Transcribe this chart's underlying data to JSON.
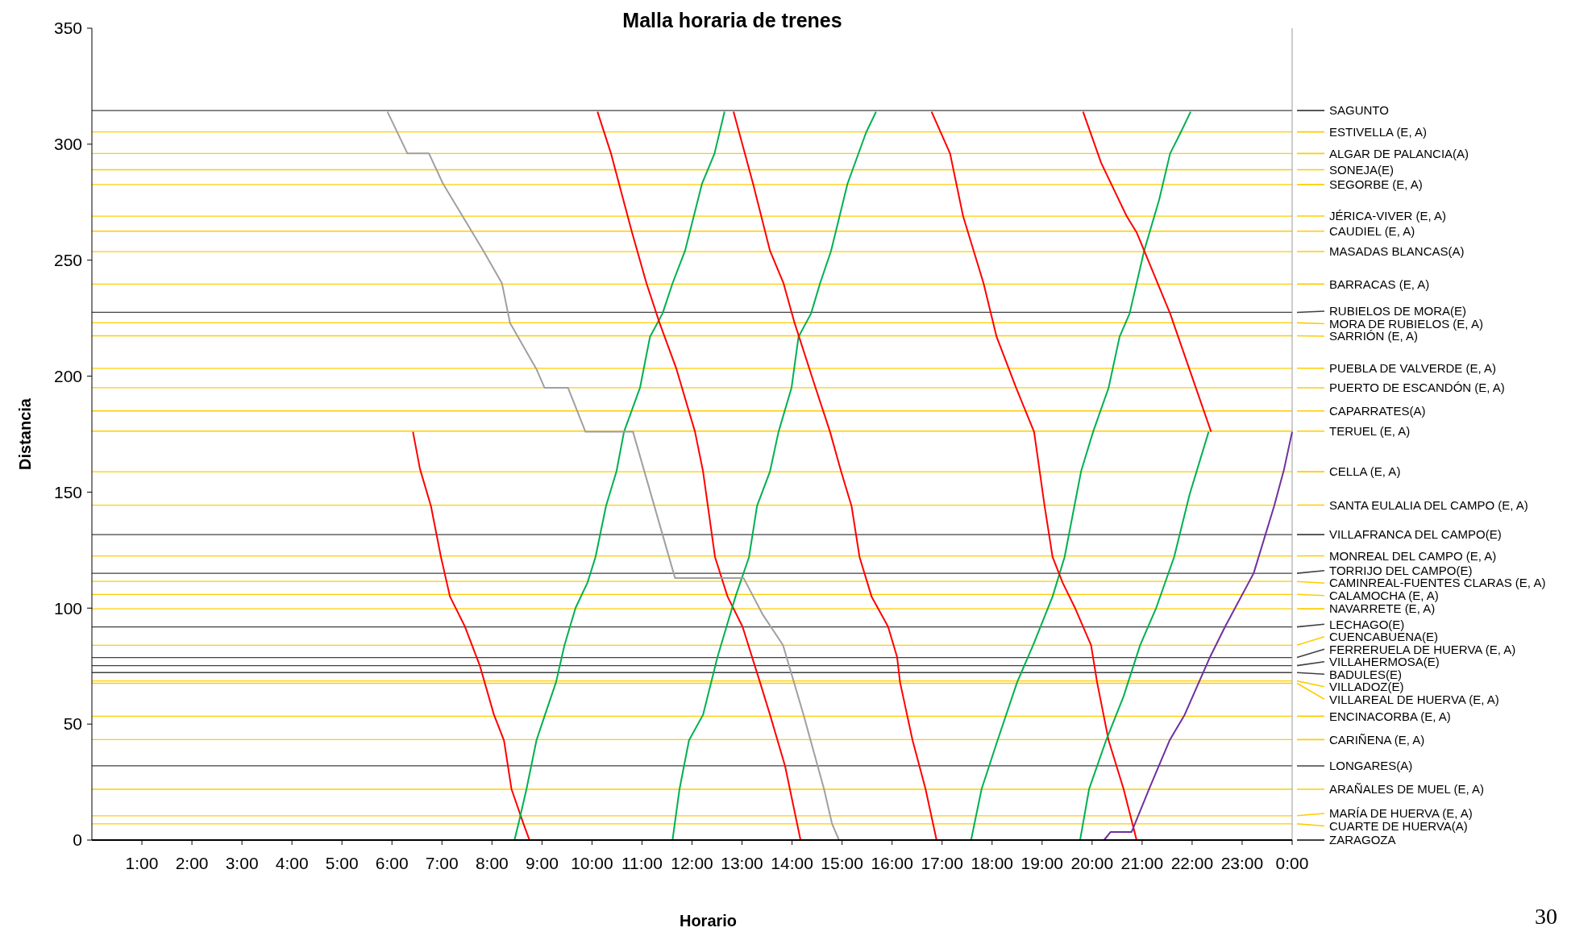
{
  "chart_data": {
    "type": "line",
    "title": "Malla horaria de trenes",
    "xlabel": "Horario",
    "ylabel": "Distancia",
    "annotations": [
      "30"
    ],
    "xlim": [
      0,
      24
    ],
    "xticks": [
      {
        "value": 1,
        "label": "1:00"
      },
      {
        "value": 2,
        "label": "2:00"
      },
      {
        "value": 3,
        "label": "3:00"
      },
      {
        "value": 4,
        "label": "4:00"
      },
      {
        "value": 5,
        "label": "5:00"
      },
      {
        "value": 6,
        "label": "6:00"
      },
      {
        "value": 7,
        "label": "7:00"
      },
      {
        "value": 8,
        "label": "8:00"
      },
      {
        "value": 9,
        "label": "9:00"
      },
      {
        "value": 10,
        "label": "10:00"
      },
      {
        "value": 11,
        "label": "11:00"
      },
      {
        "value": 12,
        "label": "12:00"
      },
      {
        "value": 13,
        "label": "13:00"
      },
      {
        "value": 14,
        "label": "14:00"
      },
      {
        "value": 15,
        "label": "15:00"
      },
      {
        "value": 16,
        "label": "16:00"
      },
      {
        "value": 17,
        "label": "17:00"
      },
      {
        "value": 18,
        "label": "18:00"
      },
      {
        "value": 19,
        "label": "19:00"
      },
      {
        "value": 20,
        "label": "20:00"
      },
      {
        "value": 21,
        "label": "21:00"
      },
      {
        "value": 22,
        "label": "22:00"
      },
      {
        "value": 23,
        "label": "23:00"
      },
      {
        "value": 24,
        "label": "0:00"
      }
    ],
    "ylim": [
      0,
      350
    ],
    "yticks": [
      0,
      50,
      100,
      150,
      200,
      250,
      300,
      350
    ],
    "marker": "none",
    "line_style": "solid",
    "series": [
      {
        "color": "#ff0000",
        "x": [
          6.42,
          6.56,
          6.78,
          6.98,
          7.16,
          7.46,
          7.76,
          8.04,
          8.24,
          8.39,
          8.63,
          8.75
        ],
        "values": [
          176,
          160,
          144,
          122,
          105,
          92,
          75,
          54,
          43,
          22,
          7,
          0
        ]
      },
      {
        "color": "#00b050",
        "x": [
          8.45,
          8.53,
          8.69,
          8.89,
          9.06,
          9.28,
          9.45,
          9.67,
          9.91,
          10.07,
          10.28,
          10.49,
          10.64,
          10.96,
          11.16,
          11.41,
          11.61,
          11.86,
          12.2,
          12.45,
          12.65
        ],
        "values": [
          0,
          7,
          22,
          43,
          54,
          68,
          84,
          100,
          111,
          122,
          144,
          159,
          176,
          195,
          217,
          227,
          240,
          254,
          283,
          296,
          314
        ]
      },
      {
        "color": "#ff0000",
        "x": [
          10.11,
          10.38,
          10.54,
          10.8,
          11.09,
          11.35,
          11.69,
          12.06,
          12.22,
          12.46,
          12.71,
          13.01,
          13.36,
          13.56,
          13.86,
          14.17
        ],
        "values": [
          314,
          296,
          283,
          262,
          240,
          223,
          203,
          176,
          159,
          122,
          105,
          92,
          68,
          54,
          32,
          0
        ]
      },
      {
        "color": "#00b050",
        "x": [
          11.61,
          11.75,
          11.94,
          12.22,
          12.51,
          12.69,
          12.87,
          13.14,
          13.3,
          13.56,
          13.73,
          13.99,
          14.13,
          14.38,
          14.56,
          14.78,
          15.11,
          15.48,
          15.68
        ],
        "values": [
          0,
          22,
          43,
          54,
          79,
          92,
          105,
          122,
          144,
          159,
          176,
          195,
          217,
          227,
          240,
          254,
          283,
          305,
          314
        ]
      },
      {
        "color": "#ff0000",
        "x": [
          12.83,
          13.22,
          13.56,
          13.83,
          14.05,
          14.47,
          14.76,
          14.98,
          15.19,
          15.35,
          15.59,
          15.92,
          16.1,
          16.16,
          16.41,
          16.67,
          16.89
        ],
        "values": [
          314,
          283,
          254,
          240,
          223,
          195,
          176,
          159,
          144,
          122,
          105,
          92,
          79,
          68,
          43,
          22,
          0
        ]
      },
      {
        "color": "#00b050",
        "x": [
          17.58,
          17.79,
          18.11,
          18.5,
          18.82,
          19.21,
          19.45,
          19.78,
          20.02,
          20.33,
          20.55,
          20.75,
          21.04,
          21.34,
          21.56,
          21.77,
          21.97
        ],
        "values": [
          0,
          22,
          43,
          68,
          84,
          105,
          122,
          159,
          176,
          195,
          217,
          227,
          254,
          276,
          296,
          305,
          314
        ]
      },
      {
        "color": "#ff0000",
        "x": [
          16.79,
          17.16,
          17.42,
          17.83,
          18.09,
          18.48,
          18.84,
          19.05,
          19.21,
          19.41,
          19.66,
          19.98,
          20.1,
          20.33,
          20.63,
          20.89
        ],
        "values": [
          314,
          296,
          269,
          240,
          217,
          195,
          176,
          144,
          122,
          111,
          100,
          84,
          68,
          43,
          22,
          0
        ]
      },
      {
        "color": "#00b050",
        "x": [
          19.76,
          19.94,
          20.28,
          20.63,
          20.96,
          21.28,
          21.64,
          21.95,
          22.33
        ],
        "values": [
          0,
          22,
          43,
          62,
          84,
          100,
          122,
          149,
          176
        ]
      },
      {
        "color": "#ff0000",
        "x": [
          19.82,
          20.18,
          20.69,
          20.89,
          21.56,
          22.38
        ],
        "values": [
          314,
          292,
          269,
          262,
          227,
          176
        ]
      },
      {
        "color": "#a0a0a0",
        "x": [
          5.91,
          6.31,
          6.74,
          7.02,
          7.83,
          8.2,
          8.36,
          8.89,
          9.05,
          9.52,
          9.87,
          10.82,
          11.66,
          13.03,
          13.42,
          13.82,
          14.23,
          14.64,
          14.8,
          14.94
        ],
        "values": [
          314,
          296,
          296,
          283,
          254,
          240,
          223,
          203,
          195,
          195,
          176,
          176,
          113,
          113,
          97,
          84,
          54,
          22,
          7,
          0
        ]
      },
      {
        "color": "#7030a0",
        "x": [
          20.24,
          20.37,
          20.79,
          21.14,
          21.55,
          21.85,
          22.36,
          22.66,
          23.23,
          23.64,
          23.84,
          24
        ],
        "values": [
          0,
          3.5,
          3.5,
          22,
          43,
          54,
          79,
          92,
          115,
          144,
          160,
          176
        ]
      }
    ],
    "ref_lines": [
      {
        "axis": "y",
        "value": 314.5,
        "label": "SAGUNTO",
        "color": "#404040"
      },
      {
        "axis": "y",
        "value": 305.3,
        "label": "ESTIVELLA (E, A)",
        "color": "#ffcc00"
      },
      {
        "axis": "y",
        "value": 296,
        "label": "ALGAR DE PALANCIA(A)",
        "color": "#ffcc00"
      },
      {
        "axis": "y",
        "value": 289,
        "label": "SONEJA(E)",
        "color": "#ffcc00"
      },
      {
        "axis": "y",
        "value": 282.6,
        "label": "SEGORBE (E, A)",
        "color": "#ffcc00"
      },
      {
        "axis": "y",
        "value": 269,
        "label": "JÉRICA-VIVER (E, A)",
        "color": "#ffcc00"
      },
      {
        "axis": "y",
        "value": 262.5,
        "label": "CAUDIEL (E, A)",
        "color": "#ffcc00"
      },
      {
        "axis": "y",
        "value": 253.7,
        "label": "MASADAS BLANCAS(A)",
        "color": "#ffcc00"
      },
      {
        "axis": "y",
        "value": 239.7,
        "label": "BARRACAS (E, A)",
        "color": "#ffcc00"
      },
      {
        "axis": "y",
        "value": 227.5,
        "label": "RUBIELOS DE MORA(E)",
        "color": "#404040"
      },
      {
        "axis": "y",
        "value": 223,
        "label": "MORA DE RUBIELOS (E, A)",
        "color": "#ffcc00"
      },
      {
        "axis": "y",
        "value": 217.4,
        "label": "SARRIÓN (E, A)",
        "color": "#ffcc00"
      },
      {
        "axis": "y",
        "value": 203.4,
        "label": "PUEBLA DE VALVERDE (E, A)",
        "color": "#ffcc00"
      },
      {
        "axis": "y",
        "value": 195,
        "label": "PUERTO DE ESCANDÓN (E, A)",
        "color": "#ffcc00"
      },
      {
        "axis": "y",
        "value": 185,
        "label": "CAPARRATES(A)",
        "color": "#ffcc00"
      },
      {
        "axis": "y",
        "value": 176.3,
        "label": "TERUEL (E, A)",
        "color": "#ffcc00"
      },
      {
        "axis": "y",
        "value": 158.8,
        "label": "CELLA (E, A)",
        "color": "#ffcc00"
      },
      {
        "axis": "y",
        "value": 144.4,
        "label": "SANTA EULALIA DEL CAMPO (E, A)",
        "color": "#ffcc00"
      },
      {
        "axis": "y",
        "value": 131.7,
        "label": "VILLAFRANCA DEL CAMPO(E)",
        "color": "#404040"
      },
      {
        "axis": "y",
        "value": 122.5,
        "label": "MONREAL DEL CAMPO (E, A)",
        "color": "#ffcc00"
      },
      {
        "axis": "y",
        "value": 115,
        "label": "TORRIJO DEL CAMPO(E)",
        "color": "#404040"
      },
      {
        "axis": "y",
        "value": 111.5,
        "label": "CAMINREAL-FUENTES CLARAS (E, A)",
        "color": "#ffcc00"
      },
      {
        "axis": "y",
        "value": 105.9,
        "label": "CALAMOCHA (E, A)",
        "color": "#ffcc00"
      },
      {
        "axis": "y",
        "value": 99.7,
        "label": "NAVARRETE (E, A)",
        "color": "#ffcc00"
      },
      {
        "axis": "y",
        "value": 91.9,
        "label": "LECHAGO(E)",
        "color": "#404040"
      },
      {
        "axis": "y",
        "value": 84,
        "label": "CUENCABUENA(E)",
        "color": "#ffcc00"
      },
      {
        "axis": "y",
        "value": 78.7,
        "label": "FERRERUELA DE HUERVA (E, A)",
        "color": "#404040"
      },
      {
        "axis": "y",
        "value": 75.2,
        "label": "VILLAHERMOSA(E)",
        "color": "#404040"
      },
      {
        "axis": "y",
        "value": 72.2,
        "label": "BADULES(E)",
        "color": "#404040"
      },
      {
        "axis": "y",
        "value": 68.6,
        "label": "VILLADOZ(E)",
        "color": "#ffcc00"
      },
      {
        "axis": "y",
        "value": 67.6,
        "label": "VILLAREAL DE HUERVA (E, A)",
        "color": "#ffcc00"
      },
      {
        "axis": "y",
        "value": 53.4,
        "label": "ENCINACORBA (E, A)",
        "color": "#ffcc00"
      },
      {
        "axis": "y",
        "value": 43.3,
        "label": "CARIÑENA (E, A)",
        "color": "#ffcc00"
      },
      {
        "axis": "y",
        "value": 32,
        "label": "LONGARES(A)",
        "color": "#404040"
      },
      {
        "axis": "y",
        "value": 21.9,
        "label": "ARAÑALES DE MUEL (E, A)",
        "color": "#ffcc00"
      },
      {
        "axis": "y",
        "value": 10.5,
        "label": "MARÍA DE HUERVA (E, A)",
        "color": "#ffcc00"
      },
      {
        "axis": "y",
        "value": 7,
        "label": "CUARTE DE HUERVA(A)",
        "color": "#ffcc00"
      },
      {
        "axis": "y",
        "value": 0,
        "label": "ZARAGOZA",
        "color": "#000000"
      }
    ]
  }
}
